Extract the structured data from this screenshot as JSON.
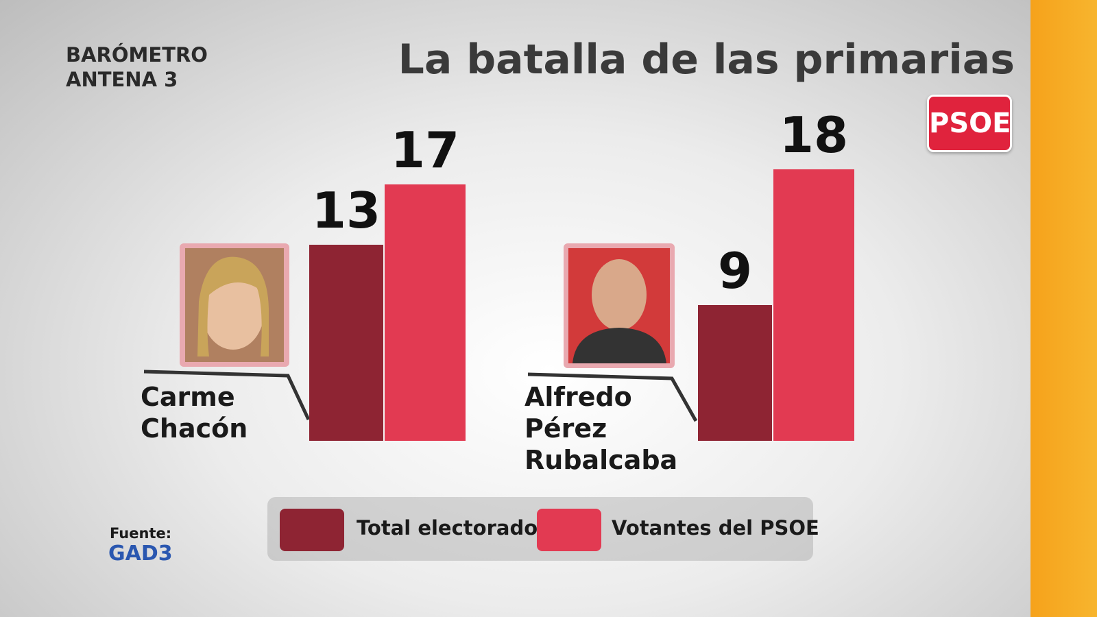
{
  "brand": "BARÓMETRO ANTENA 3",
  "source_label": "Fuente:",
  "source": "GAD3",
  "party": "PSOE",
  "chart_data": {
    "type": "bar",
    "title": "La batalla de las primarias",
    "categories": [
      "Carme Chacón",
      "Alfredo Pérez Rubalcaba"
    ],
    "series": [
      {
        "name": "Total electorado",
        "color": "#8e2433",
        "values": [
          13,
          9
        ]
      },
      {
        "name": "Votantes del PSOE",
        "color": "#e23a52",
        "values": [
          17,
          18
        ]
      }
    ]
  }
}
